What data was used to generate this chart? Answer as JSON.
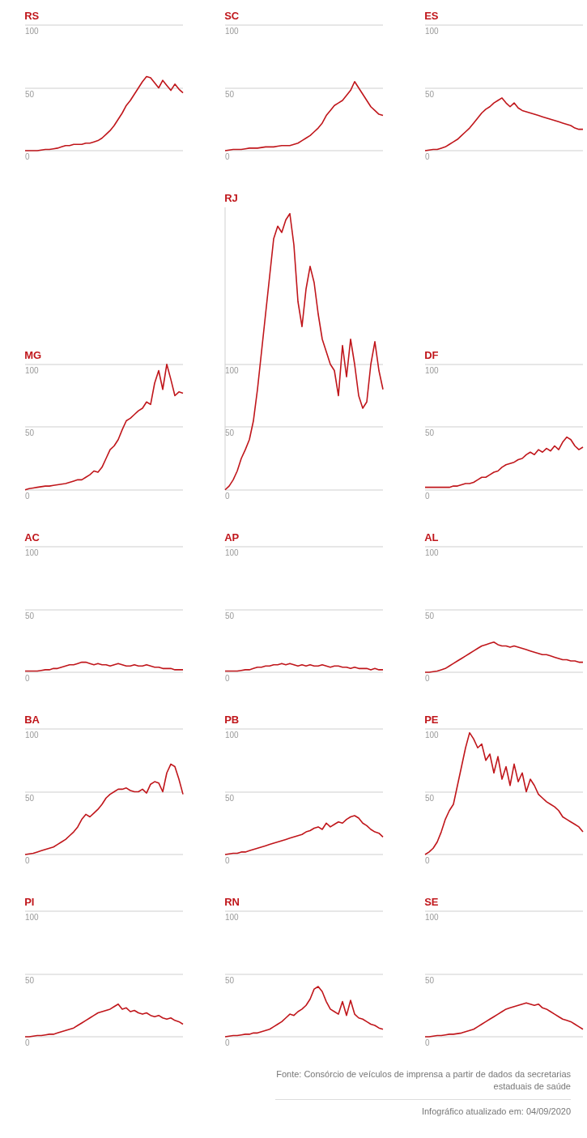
{
  "chart_data": [
    {
      "type": "line",
      "title": "RS",
      "categories": [
        null,
        null,
        null,
        null,
        null,
        null,
        null,
        null,
        null,
        null,
        null,
        null,
        null,
        null,
        null,
        null,
        null,
        null,
        null,
        null,
        null,
        null,
        null,
        null,
        null,
        null,
        null,
        null,
        null,
        null,
        null,
        null,
        null,
        null,
        null,
        null,
        null,
        null,
        null,
        null
      ],
      "series": [
        {
          "color": "#c0161b",
          "values": [
            0,
            0,
            0,
            0,
            0.5,
            1,
            1,
            1.5,
            2,
            3,
            4,
            4,
            5,
            5,
            5,
            6,
            6,
            7,
            8,
            10,
            13,
            16,
            20,
            25,
            30,
            36,
            40,
            45,
            50,
            55,
            59,
            58,
            54,
            50,
            56,
            52,
            48,
            53,
            49,
            46
          ]
        }
      ],
      "ylim": [
        0,
        100
      ],
      "yticks": [
        0,
        50,
        100
      ],
      "grid": "y",
      "tick_labels": "y"
    },
    {
      "type": "line",
      "title": "SC",
      "categories": [
        null,
        null,
        null,
        null,
        null,
        null,
        null,
        null,
        null,
        null,
        null,
        null,
        null,
        null,
        null,
        null,
        null,
        null,
        null,
        null,
        null,
        null,
        null,
        null,
        null,
        null,
        null,
        null,
        null,
        null,
        null,
        null,
        null,
        null,
        null,
        null,
        null,
        null,
        null,
        null
      ],
      "series": [
        {
          "color": "#c0161b",
          "values": [
            0,
            0.5,
            1,
            1,
            1,
            1.5,
            2,
            2,
            2,
            2.5,
            3,
            3,
            3,
            3.5,
            4,
            4,
            4,
            5,
            6,
            8,
            10,
            12,
            15,
            18,
            22,
            28,
            32,
            36,
            38,
            40,
            44,
            48,
            55,
            50,
            45,
            40,
            35,
            32,
            29,
            28
          ]
        }
      ],
      "ylim": [
        0,
        100
      ],
      "yticks": [
        0,
        50,
        100
      ],
      "grid": "y",
      "tick_labels": "y"
    },
    {
      "type": "line",
      "title": "ES",
      "categories": [
        null,
        null,
        null,
        null,
        null,
        null,
        null,
        null,
        null,
        null,
        null,
        null,
        null,
        null,
        null,
        null,
        null,
        null,
        null,
        null,
        null,
        null,
        null,
        null,
        null,
        null,
        null,
        null,
        null,
        null,
        null,
        null,
        null,
        null,
        null,
        null,
        null,
        null,
        null,
        null
      ],
      "series": [
        {
          "color": "#c0161b",
          "values": [
            0,
            0.5,
            1,
            1,
            2,
            3,
            5,
            7,
            9,
            12,
            15,
            18,
            22,
            26,
            30,
            33,
            35,
            38,
            40,
            42,
            38,
            35,
            38,
            34,
            32,
            31,
            30,
            29,
            28,
            27,
            26,
            25,
            24,
            23,
            22,
            21,
            20,
            18,
            17,
            17
          ]
        }
      ],
      "ylim": [
        0,
        100
      ],
      "yticks": [
        0,
        50,
        100
      ],
      "grid": "y",
      "tick_labels": "y"
    },
    {
      "type": "line",
      "title": "MG",
      "categories": [
        null,
        null,
        null,
        null,
        null,
        null,
        null,
        null,
        null,
        null,
        null,
        null,
        null,
        null,
        null,
        null,
        null,
        null,
        null,
        null,
        null,
        null,
        null,
        null,
        null,
        null,
        null,
        null,
        null,
        null,
        null,
        null,
        null,
        null,
        null,
        null,
        null,
        null,
        null,
        null
      ],
      "series": [
        {
          "color": "#c0161b",
          "values": [
            0,
            1,
            1.5,
            2,
            2.5,
            3,
            3,
            3.5,
            4,
            4.5,
            5,
            6,
            7,
            8,
            8,
            10,
            12,
            15,
            14,
            18,
            25,
            32,
            35,
            40,
            48,
            55,
            57,
            60,
            63,
            65,
            70,
            68,
            85,
            95,
            80,
            100,
            88,
            75,
            78,
            77
          ]
        }
      ],
      "ylim": [
        0,
        100
      ],
      "yticks": [
        0,
        50,
        100
      ],
      "grid": "y",
      "tick_labels": "y"
    },
    {
      "type": "line",
      "title": "RJ",
      "categories": [
        null,
        null,
        null,
        null,
        null,
        null,
        null,
        null,
        null,
        null,
        null,
        null,
        null,
        null,
        null,
        null,
        null,
        null,
        null,
        null,
        null,
        null,
        null,
        null,
        null,
        null,
        null,
        null,
        null,
        null,
        null,
        null,
        null,
        null,
        null,
        null,
        null,
        null,
        null,
        null
      ],
      "series": [
        {
          "color": "#c0161b",
          "values": [
            0,
            3,
            8,
            15,
            25,
            32,
            40,
            55,
            80,
            110,
            140,
            170,
            200,
            210,
            205,
            215,
            220,
            195,
            150,
            130,
            160,
            178,
            165,
            140,
            120,
            110,
            100,
            95,
            75,
            115,
            90,
            120,
            100,
            75,
            65,
            70,
            100,
            118,
            95,
            80
          ]
        }
      ],
      "ylim": [
        0,
        225
      ],
      "yticks": [
        0,
        50,
        100
      ],
      "grid": "y",
      "tick_labels": "y"
    },
    {
      "type": "line",
      "title": "DF",
      "categories": [
        null,
        null,
        null,
        null,
        null,
        null,
        null,
        null,
        null,
        null,
        null,
        null,
        null,
        null,
        null,
        null,
        null,
        null,
        null,
        null,
        null,
        null,
        null,
        null,
        null,
        null,
        null,
        null,
        null,
        null,
        null,
        null,
        null,
        null,
        null,
        null,
        null,
        null,
        null,
        null
      ],
      "series": [
        {
          "color": "#c0161b",
          "values": [
            2,
            2,
            2,
            2,
            2,
            2,
            2,
            3,
            3,
            4,
            5,
            5,
            6,
            8,
            10,
            10,
            12,
            14,
            15,
            18,
            20,
            21,
            22,
            24,
            25,
            28,
            30,
            28,
            32,
            30,
            33,
            31,
            35,
            32,
            38,
            42,
            40,
            35,
            32,
            34
          ]
        }
      ],
      "ylim": [
        0,
        100
      ],
      "yticks": [
        0,
        50,
        100
      ],
      "grid": "y",
      "tick_labels": "y"
    },
    {
      "type": "line",
      "title": "AC",
      "categories": [
        null,
        null,
        null,
        null,
        null,
        null,
        null,
        null,
        null,
        null,
        null,
        null,
        null,
        null,
        null,
        null,
        null,
        null,
        null,
        null,
        null,
        null,
        null,
        null,
        null,
        null,
        null,
        null,
        null,
        null,
        null,
        null,
        null,
        null,
        null,
        null,
        null,
        null,
        null,
        null
      ],
      "series": [
        {
          "color": "#c0161b",
          "values": [
            1,
            1,
            1,
            1,
            1.5,
            2,
            2,
            3,
            3,
            4,
            5,
            6,
            6,
            7,
            8,
            8,
            7,
            6,
            7,
            6,
            6,
            5,
            6,
            7,
            6,
            5,
            5,
            6,
            5,
            5,
            6,
            5,
            4,
            4,
            3,
            3,
            3,
            2,
            2,
            2
          ]
        }
      ],
      "ylim": [
        0,
        100
      ],
      "yticks": [
        0,
        50,
        100
      ],
      "grid": "y",
      "tick_labels": "y"
    },
    {
      "type": "line",
      "title": "AP",
      "categories": [
        null,
        null,
        null,
        null,
        null,
        null,
        null,
        null,
        null,
        null,
        null,
        null,
        null,
        null,
        null,
        null,
        null,
        null,
        null,
        null,
        null,
        null,
        null,
        null,
        null,
        null,
        null,
        null,
        null,
        null,
        null,
        null,
        null,
        null,
        null,
        null,
        null,
        null,
        null,
        null
      ],
      "series": [
        {
          "color": "#c0161b",
          "values": [
            1,
            1,
            1,
            1,
            1.5,
            2,
            2,
            3,
            4,
            4,
            5,
            5,
            6,
            6,
            7,
            6,
            7,
            6,
            5,
            6,
            5,
            6,
            5,
            5,
            6,
            5,
            4,
            5,
            5,
            4,
            4,
            3,
            4,
            3,
            3,
            3,
            2,
            3,
            2,
            2
          ]
        }
      ],
      "ylim": [
        0,
        100
      ],
      "yticks": [
        0,
        50,
        100
      ],
      "grid": "y",
      "tick_labels": "y"
    },
    {
      "type": "line",
      "title": "AL",
      "categories": [
        null,
        null,
        null,
        null,
        null,
        null,
        null,
        null,
        null,
        null,
        null,
        null,
        null,
        null,
        null,
        null,
        null,
        null,
        null,
        null,
        null,
        null,
        null,
        null,
        null,
        null,
        null,
        null,
        null,
        null,
        null,
        null,
        null,
        null,
        null,
        null,
        null,
        null,
        null,
        null
      ],
      "series": [
        {
          "color": "#c0161b",
          "values": [
            0,
            0,
            0.5,
            1,
            2,
            3,
            5,
            7,
            9,
            11,
            13,
            15,
            17,
            19,
            21,
            22,
            23,
            24,
            22,
            21,
            21,
            20,
            21,
            20,
            19,
            18,
            17,
            16,
            15,
            14,
            14,
            13,
            12,
            11,
            10,
            10,
            9,
            9,
            8,
            8
          ]
        }
      ],
      "ylim": [
        0,
        100
      ],
      "yticks": [
        0,
        50,
        100
      ],
      "grid": "y",
      "tick_labels": "y"
    },
    {
      "type": "line",
      "title": "BA",
      "categories": [
        null,
        null,
        null,
        null,
        null,
        null,
        null,
        null,
        null,
        null,
        null,
        null,
        null,
        null,
        null,
        null,
        null,
        null,
        null,
        null,
        null,
        null,
        null,
        null,
        null,
        null,
        null,
        null,
        null,
        null,
        null,
        null,
        null,
        null,
        null,
        null,
        null,
        null,
        null,
        null
      ],
      "series": [
        {
          "color": "#c0161b",
          "values": [
            0,
            0.5,
            1,
            2,
            3,
            4,
            5,
            6,
            8,
            10,
            12,
            15,
            18,
            22,
            28,
            32,
            30,
            33,
            36,
            40,
            45,
            48,
            50,
            52,
            52,
            53,
            51,
            50,
            50,
            52,
            49,
            56,
            58,
            57,
            50,
            65,
            72,
            70,
            60,
            48
          ]
        }
      ],
      "ylim": [
        0,
        100
      ],
      "yticks": [
        0,
        50,
        100
      ],
      "grid": "y",
      "tick_labels": "y"
    },
    {
      "type": "line",
      "title": "PB",
      "categories": [
        null,
        null,
        null,
        null,
        null,
        null,
        null,
        null,
        null,
        null,
        null,
        null,
        null,
        null,
        null,
        null,
        null,
        null,
        null,
        null,
        null,
        null,
        null,
        null,
        null,
        null,
        null,
        null,
        null,
        null,
        null,
        null,
        null,
        null,
        null,
        null,
        null,
        null,
        null,
        null
      ],
      "series": [
        {
          "color": "#c0161b",
          "values": [
            0,
            0.5,
            1,
            1,
            2,
            2,
            3,
            4,
            5,
            6,
            7,
            8,
            9,
            10,
            11,
            12,
            13,
            14,
            15,
            16,
            18,
            19,
            21,
            22,
            20,
            25,
            22,
            24,
            26,
            25,
            28,
            30,
            31,
            29,
            25,
            23,
            20,
            18,
            17,
            14
          ]
        }
      ],
      "ylim": [
        0,
        100
      ],
      "yticks": [
        0,
        50,
        100
      ],
      "grid": "y",
      "tick_labels": "y"
    },
    {
      "type": "line",
      "title": "PE",
      "categories": [
        null,
        null,
        null,
        null,
        null,
        null,
        null,
        null,
        null,
        null,
        null,
        null,
        null,
        null,
        null,
        null,
        null,
        null,
        null,
        null,
        null,
        null,
        null,
        null,
        null,
        null,
        null,
        null,
        null,
        null,
        null,
        null,
        null,
        null,
        null,
        null,
        null,
        null,
        null,
        null
      ],
      "series": [
        {
          "color": "#c0161b",
          "values": [
            0,
            2,
            5,
            10,
            18,
            28,
            35,
            40,
            55,
            70,
            85,
            97,
            92,
            85,
            88,
            75,
            80,
            65,
            78,
            60,
            70,
            55,
            72,
            58,
            65,
            50,
            60,
            55,
            48,
            45,
            42,
            40,
            38,
            35,
            30,
            28,
            26,
            24,
            22,
            18
          ]
        }
      ],
      "ylim": [
        0,
        100
      ],
      "yticks": [
        0,
        50,
        100
      ],
      "grid": "y",
      "tick_labels": "y"
    },
    {
      "type": "line",
      "title": "PI",
      "categories": [
        null,
        null,
        null,
        null,
        null,
        null,
        null,
        null,
        null,
        null,
        null,
        null,
        null,
        null,
        null,
        null,
        null,
        null,
        null,
        null,
        null,
        null,
        null,
        null,
        null,
        null,
        null,
        null,
        null,
        null,
        null,
        null,
        null,
        null,
        null,
        null,
        null,
        null,
        null,
        null
      ],
      "series": [
        {
          "color": "#c0161b",
          "values": [
            0,
            0,
            0.5,
            1,
            1,
            1.5,
            2,
            2,
            3,
            4,
            5,
            6,
            7,
            9,
            11,
            13,
            15,
            17,
            19,
            20,
            21,
            22,
            24,
            26,
            22,
            23,
            20,
            21,
            19,
            18,
            19,
            17,
            16,
            17,
            15,
            14,
            15,
            13,
            12,
            10
          ]
        }
      ],
      "ylim": [
        0,
        100
      ],
      "yticks": [
        0,
        50,
        100
      ],
      "grid": "y",
      "tick_labels": "y"
    },
    {
      "type": "line",
      "title": "RN",
      "categories": [
        null,
        null,
        null,
        null,
        null,
        null,
        null,
        null,
        null,
        null,
        null,
        null,
        null,
        null,
        null,
        null,
        null,
        null,
        null,
        null,
        null,
        null,
        null,
        null,
        null,
        null,
        null,
        null,
        null,
        null,
        null,
        null,
        null,
        null,
        null,
        null,
        null,
        null,
        null,
        null
      ],
      "series": [
        {
          "color": "#c0161b",
          "values": [
            0,
            0.5,
            1,
            1,
            1.5,
            2,
            2,
            3,
            3,
            4,
            5,
            6,
            8,
            10,
            12,
            15,
            18,
            17,
            20,
            22,
            25,
            30,
            38,
            40,
            36,
            28,
            22,
            20,
            18,
            28,
            17,
            29,
            18,
            15,
            14,
            12,
            10,
            9,
            7,
            6
          ]
        }
      ],
      "ylim": [
        0,
        100
      ],
      "yticks": [
        0,
        50,
        100
      ],
      "grid": "y",
      "tick_labels": "y"
    },
    {
      "type": "line",
      "title": "SE",
      "categories": [
        null,
        null,
        null,
        null,
        null,
        null,
        null,
        null,
        null,
        null,
        null,
        null,
        null,
        null,
        null,
        null,
        null,
        null,
        null,
        null,
        null,
        null,
        null,
        null,
        null,
        null,
        null,
        null,
        null,
        null,
        null,
        null,
        null,
        null,
        null,
        null,
        null,
        null,
        null,
        null
      ],
      "series": [
        {
          "color": "#c0161b",
          "values": [
            0,
            0,
            0.5,
            1,
            1,
            1.5,
            2,
            2,
            2.5,
            3,
            4,
            5,
            6,
            8,
            10,
            12,
            14,
            16,
            18,
            20,
            22,
            23,
            24,
            25,
            26,
            27,
            26,
            25,
            26,
            23,
            22,
            20,
            18,
            16,
            14,
            13,
            12,
            10,
            8,
            6
          ]
        }
      ],
      "ylim": [
        0,
        100
      ],
      "yticks": [
        0,
        50,
        100
      ],
      "grid": "y",
      "tick_labels": "y",
      "annotations": [
        "Fonte: Consórcio de veículos de imprensa a partir de dados da secretarias estaduais de saúde",
        "Infográfico atualizado em: 04/09/2020"
      ]
    }
  ]
}
